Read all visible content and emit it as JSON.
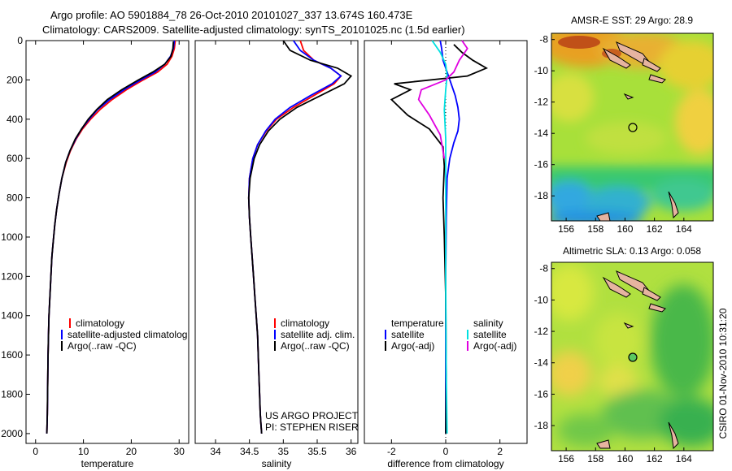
{
  "header": {
    "line1": "Argo profile: AO 5901884_78 26-Oct-2010 20101027_337 13.674S 160.473E",
    "line2": "Climatology: CARS2009. Satellite-adjusted climatology: synTS_20101025.nc (1.5d earlier)"
  },
  "side_label": "CSIRO 01-Nov-2010 10:31:20",
  "credits": [
    "US ARGO PROJECT",
    "PI: STEPHEN RISER"
  ],
  "chart_data": [
    {
      "type": "line",
      "id": "temperature",
      "xlabel": "temperature",
      "ylabel": "",
      "xlim": [
        -2,
        32
      ],
      "ylim": [
        2050,
        0
      ],
      "xticks": [
        0,
        10,
        20,
        30
      ],
      "yticks": [
        0,
        200,
        400,
        600,
        800,
        1000,
        1200,
        1400,
        1600,
        1800,
        2000
      ],
      "legend": [
        "climatology",
        "satellite-adjusted climatolog",
        "Argo(..raw -QC)"
      ],
      "series": [
        {
          "name": "climatology",
          "color": "#ff0000",
          "x": [
            29.2,
            29.0,
            28.5,
            27.5,
            25.5,
            22.5,
            19,
            16,
            13.5,
            11.5,
            9.8,
            8.5,
            7.3,
            6.4,
            5.5,
            4.9,
            4.4,
            4.0,
            3.7,
            3.4,
            3.2,
            3.0,
            2.8,
            2.7,
            2.6,
            2.55,
            2.5,
            2.45,
            2.4,
            2.35
          ],
          "y": [
            0,
            40,
            80,
            120,
            160,
            200,
            250,
            300,
            350,
            400,
            450,
            500,
            560,
            620,
            700,
            780,
            860,
            940,
            1020,
            1100,
            1200,
            1300,
            1400,
            1500,
            1600,
            1700,
            1800,
            1900,
            1950,
            2000
          ]
        },
        {
          "name": "satellite-adjusted climatolog",
          "color": "#0000ff",
          "x": [
            29.0,
            28.8,
            28.2,
            27.0,
            25.0,
            22.0,
            18.5,
            15.5,
            13.0,
            11.2,
            9.6,
            8.4,
            7.2,
            6.3,
            5.5,
            4.9,
            4.4,
            4.0,
            3.7,
            3.4,
            3.2,
            3.0,
            2.8,
            2.7,
            2.6,
            2.55,
            2.5,
            2.45,
            2.4,
            2.35
          ],
          "y": [
            0,
            40,
            80,
            120,
            160,
            200,
            250,
            300,
            350,
            400,
            450,
            500,
            560,
            620,
            700,
            780,
            860,
            940,
            1020,
            1100,
            1200,
            1300,
            1400,
            1500,
            1600,
            1700,
            1800,
            1900,
            1950,
            2000
          ]
        },
        {
          "name": "Argo(..raw -QC)",
          "color": "#000000",
          "x": [
            28.8,
            28.7,
            28.3,
            27.0,
            24.5,
            21.5,
            18.0,
            15.0,
            12.8,
            11.0,
            9.6,
            8.3,
            7.2,
            6.3,
            5.5,
            4.9,
            4.4,
            4.0,
            3.7,
            3.4,
            3.2,
            3.0,
            2.8,
            2.7,
            2.6,
            2.55,
            2.5,
            2.45,
            2.4,
            2.35
          ],
          "y": [
            5,
            40,
            80,
            120,
            160,
            200,
            250,
            300,
            350,
            400,
            450,
            500,
            560,
            620,
            700,
            780,
            860,
            940,
            1020,
            1100,
            1200,
            1300,
            1400,
            1500,
            1600,
            1700,
            1800,
            1900,
            1950,
            2000
          ]
        }
      ]
    },
    {
      "type": "line",
      "id": "salinity",
      "xlabel": "salinity",
      "ylabel": "",
      "xlim": [
        33.7,
        36.1
      ],
      "ylim": [
        2050,
        0
      ],
      "xticks": [
        34,
        34.5,
        35,
        35.5,
        36
      ],
      "xtick_labels": [
        "34",
        "34.5",
        "35",
        "35.5",
        "36"
      ],
      "legend": [
        "climatology",
        "satellite adj. clim.",
        "Argo(..raw -QC)"
      ],
      "series": [
        {
          "name": "climatology",
          "color": "#ff0000",
          "x": [
            35.25,
            35.3,
            35.45,
            35.7,
            35.85,
            35.75,
            35.45,
            35.15,
            34.9,
            34.75,
            34.62,
            34.55,
            34.5,
            34.49,
            34.5,
            34.52,
            34.54,
            34.56,
            34.58,
            34.6,
            34.62,
            34.63,
            34.64,
            34.65,
            34.66,
            34.67,
            34.68
          ],
          "y": [
            0,
            50,
            100,
            140,
            180,
            220,
            280,
            340,
            400,
            460,
            530,
            600,
            700,
            800,
            900,
            1000,
            1100,
            1200,
            1300,
            1400,
            1500,
            1600,
            1700,
            1800,
            1900,
            1950,
            2000
          ]
        },
        {
          "name": "satellite adj. clim.",
          "color": "#0000ff",
          "x": [
            35.15,
            35.25,
            35.45,
            35.7,
            35.85,
            35.72,
            35.4,
            35.1,
            34.88,
            34.74,
            34.62,
            34.55,
            34.5,
            34.49,
            34.5,
            34.52,
            34.54,
            34.56,
            34.58,
            34.6,
            34.62,
            34.63,
            34.64,
            34.65,
            34.66,
            34.67,
            34.68
          ],
          "y": [
            0,
            50,
            100,
            140,
            180,
            220,
            280,
            340,
            400,
            460,
            530,
            600,
            700,
            800,
            900,
            1000,
            1100,
            1200,
            1300,
            1400,
            1500,
            1600,
            1700,
            1800,
            1900,
            1950,
            2000
          ]
        },
        {
          "name": "Argo(..raw -QC)",
          "color": "#000000",
          "x": [
            35.0,
            35.1,
            35.4,
            35.8,
            36.0,
            35.9,
            35.55,
            35.2,
            34.95,
            34.78,
            34.65,
            34.57,
            34.51,
            34.49,
            34.5,
            34.52,
            34.54,
            34.56,
            34.58,
            34.6,
            34.62,
            34.63,
            34.64,
            34.65,
            34.66,
            34.67,
            34.68
          ],
          "y": [
            0,
            50,
            100,
            140,
            180,
            220,
            280,
            340,
            400,
            460,
            530,
            600,
            700,
            800,
            900,
            1000,
            1100,
            1200,
            1300,
            1400,
            1500,
            1600,
            1700,
            1800,
            1900,
            1950,
            2000
          ]
        }
      ]
    },
    {
      "type": "line",
      "id": "difference",
      "xlabel": "difference from climatology",
      "ylabel": "",
      "xlim": [
        -3,
        3
      ],
      "ylim": [
        2050,
        0
      ],
      "xticks": [
        -2,
        0,
        2
      ],
      "legend_groups": [
        {
          "title": "temperature",
          "entries": [
            "satellite",
            "Argo(-adj)"
          ]
        },
        {
          "title": "salinity",
          "entries": [
            "satellite",
            "Argo(-adj)"
          ]
        }
      ],
      "series": [
        {
          "name": "satellite",
          "group": "temperature",
          "color": "#0000ff",
          "x": [
            -0.2,
            -0.15,
            -0.1,
            0.05,
            0.2,
            0.35,
            0.45,
            0.5,
            0.45,
            0.3,
            0.15,
            0.05,
            0.02,
            0.0,
            0.0,
            0.0
          ],
          "y": [
            0,
            40,
            100,
            160,
            220,
            280,
            340,
            400,
            460,
            520,
            600,
            700,
            900,
            1200,
            1600,
            2000
          ]
        },
        {
          "name": "Argo(-adj)",
          "group": "temperature",
          "color": "#000000",
          "x": [
            0.3,
            0.6,
            1.0,
            1.5,
            0.8,
            -1.9,
            -1.3,
            -2.0,
            -1.4,
            -0.6,
            -0.1,
            -0.05,
            -0.1,
            -0.05,
            0.0,
            0.02,
            0.0
          ],
          "y": [
            20,
            60,
            100,
            140,
            180,
            220,
            250,
            300,
            380,
            450,
            540,
            640,
            800,
            1000,
            1300,
            1700,
            2000
          ]
        },
        {
          "name": "satellite",
          "group": "salinity",
          "color": "#00e0e0",
          "x": [
            -0.5,
            -0.2,
            0.0,
            0.05,
            0.0,
            -0.05,
            0.0,
            0.0,
            0.0,
            0.02,
            0.05
          ],
          "y": [
            0,
            60,
            120,
            180,
            250,
            350,
            500,
            800,
            1200,
            1700,
            2000
          ]
        },
        {
          "name": "Argo(-adj)",
          "group": "salinity",
          "color": "#e000e0",
          "x": [
            0.6,
            0.8,
            0.5,
            0.3,
            0.0,
            -0.9,
            -1.0,
            -0.6,
            -0.2,
            -0.05
          ],
          "y": [
            0,
            40,
            100,
            160,
            200,
            250,
            300,
            380,
            480,
            600
          ]
        }
      ]
    },
    {
      "type": "heatmap",
      "id": "sst_map",
      "title": "AMSR-E SST: 29 Argo: 28.9",
      "xlim": [
        155,
        166
      ],
      "ylim": [
        -19.6,
        -7.6
      ],
      "xticks": [
        156,
        158,
        160,
        162,
        164
      ],
      "yticks": [
        -8,
        -10,
        -12,
        -14,
        -16,
        -18
      ],
      "marker": {
        "lon": 160.473,
        "lat": -13.674
      }
    },
    {
      "type": "heatmap",
      "id": "sla_map",
      "title": "Altimetric SLA: 0.13 Argo: 0.058",
      "xlim": [
        155,
        166
      ],
      "ylim": [
        -19.6,
        -7.6
      ],
      "xticks": [
        156,
        158,
        160,
        162,
        164
      ],
      "yticks": [
        -8,
        -10,
        -12,
        -14,
        -16,
        -18
      ],
      "marker": {
        "lon": 160.473,
        "lat": -13.674
      }
    }
  ]
}
